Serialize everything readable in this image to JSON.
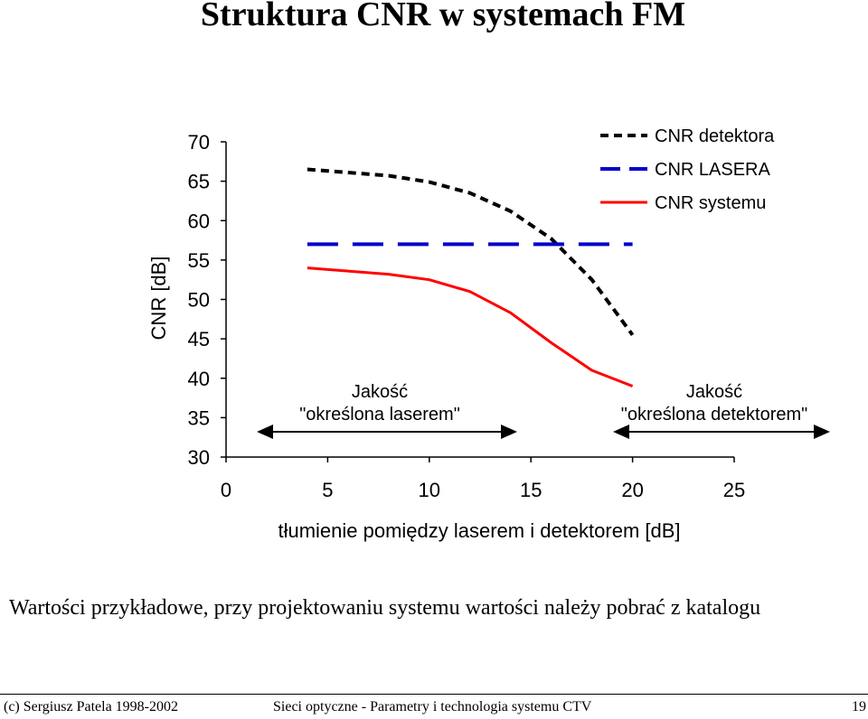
{
  "page": {
    "title": "Struktura CNR w systemach FM",
    "note": "Wartości przykładowe, przy projektowaniu systemu wartości należy pobrać z katalogu",
    "footer_left": "(c) Sergiusz Patela 1998-2002",
    "footer_center": "Sieci optyczne - Parametry i technologia systemu CTV",
    "footer_page": "19"
  },
  "annotations": {
    "laser_region_line1": "Jakość",
    "laser_region_line2": "\"określona laserem\"",
    "detector_region_line1": "Jakość",
    "detector_region_line2": "\"określona detektorem\""
  },
  "chart_data": {
    "type": "line",
    "xlabel": "tłumienie pomiędzy laserem i detektorem [dB]",
    "ylabel": "CNR [dB]",
    "xlim": [
      0,
      25
    ],
    "ylim": [
      30,
      70
    ],
    "xticks": [
      0,
      5,
      10,
      15,
      20,
      25
    ],
    "yticks": [
      30,
      35,
      40,
      45,
      50,
      55,
      60,
      65,
      70
    ],
    "grid": false,
    "legend_position": "top-right",
    "series": [
      {
        "name": "CNR detektora",
        "color": "#000000",
        "style": "dotted",
        "x": [
          4,
          6,
          8,
          10,
          12,
          14,
          16,
          18,
          19,
          20
        ],
        "y": [
          66.5,
          66.1,
          65.7,
          64.9,
          63.5,
          61.2,
          57.7,
          52.5,
          49.0,
          45.5
        ]
      },
      {
        "name": "CNR LASERA",
        "color": "#0000cc",
        "style": "dashed",
        "x": [
          4,
          20
        ],
        "y": [
          57,
          57
        ]
      },
      {
        "name": "CNR systemu",
        "color": "#ff0000",
        "style": "solid",
        "x": [
          4,
          6,
          8,
          10,
          12,
          14,
          16,
          18,
          20
        ],
        "y": [
          54,
          53.6,
          53.2,
          52.5,
          51.0,
          48.3,
          44.5,
          41.0,
          39.0
        ]
      }
    ]
  }
}
